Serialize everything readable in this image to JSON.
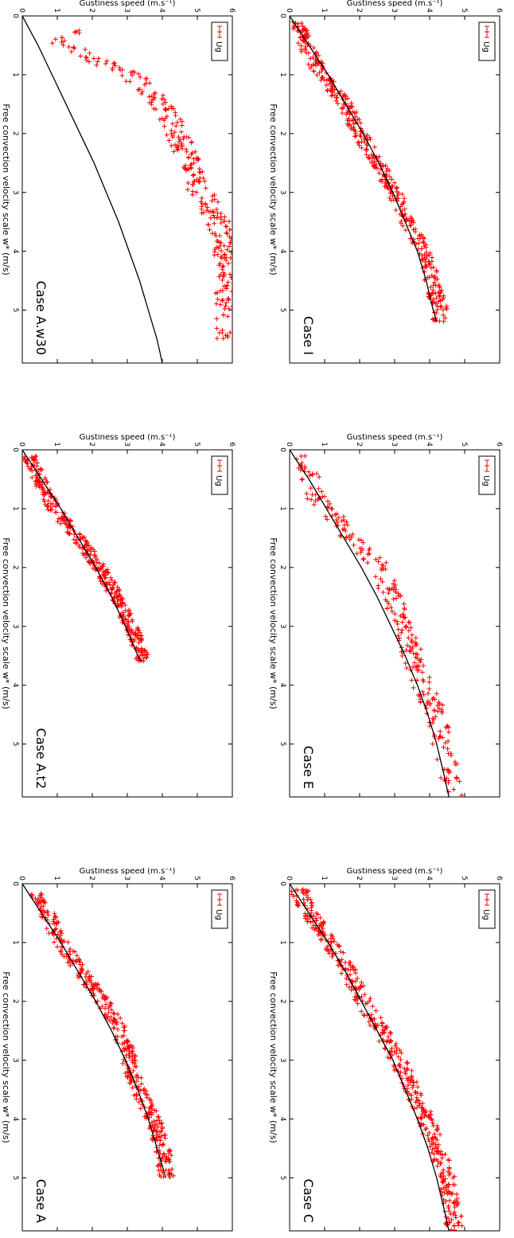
{
  "figure": {
    "style": {
      "marker_color": "#ff0000",
      "curve_color": "#000000",
      "axis_color": "#000000",
      "background": "#ffffff"
    },
    "orientation": "rotated-90-clockwise"
  },
  "chart_data": [
    {
      "type": "scatter",
      "title": "Case A",
      "xlabel": "Free convection velocity scale w* (m/s)",
      "ylabel": "Gustiness speed (m.s⁻¹)",
      "xlim": [
        0,
        5.9
      ],
      "ylim": [
        0,
        6
      ],
      "xticks": [
        "0",
        "1",
        "2",
        "3",
        "4",
        "5"
      ],
      "yticks": [
        "0",
        "1",
        "2",
        "3",
        "4",
        "5",
        "6"
      ],
      "legend": {
        "label": "Ug",
        "position": "top-left"
      },
      "fit_curve": {
        "x": [
          0,
          0.5,
          1,
          1.5,
          2,
          2.5,
          3,
          3.5,
          4,
          4.5,
          5
        ],
        "y": [
          0,
          0.55,
          1.1,
          1.6,
          2.1,
          2.55,
          2.95,
          3.3,
          3.6,
          3.85,
          4.1
        ]
      },
      "series": [
        {
          "name": "Ug",
          "x_range": [
            0.15,
            5.0
          ],
          "count": 420,
          "band": [
            [
              0.2,
              0.45
            ],
            [
              0.5,
              0.7
            ],
            [
              1.0,
              1.1
            ],
            [
              1.5,
              1.7
            ],
            [
              2.0,
              2.3
            ],
            [
              2.5,
              2.8
            ],
            [
              3.0,
              3.05
            ],
            [
              3.5,
              3.3
            ],
            [
              4.0,
              3.75
            ],
            [
              4.5,
              4.0
            ],
            [
              5.0,
              4.15
            ]
          ],
          "scatter": 0.22
        }
      ]
    },
    {
      "type": "scatter",
      "title": "Case A.t2",
      "xlabel": "Free convection velocity scale w* (m/s)",
      "ylabel": "Gustiness speed (m.s⁻¹)",
      "xlim": [
        0,
        5.9
      ],
      "ylim": [
        0,
        6
      ],
      "xticks": [
        "0",
        "1",
        "2",
        "3",
        "4",
        "5"
      ],
      "yticks": [
        "0",
        "1",
        "2",
        "3",
        "4",
        "5",
        "6"
      ],
      "legend": {
        "label": "Ug",
        "position": "top-left"
      },
      "fit_curve": {
        "x": [
          0,
          0.5,
          1,
          1.5,
          2,
          2.5,
          3,
          3.5,
          3.6
        ],
        "y": [
          0,
          0.55,
          1.1,
          1.6,
          2.1,
          2.55,
          2.95,
          3.3,
          3.4
        ]
      },
      "series": [
        {
          "name": "Ug",
          "x_range": [
            0.1,
            3.6
          ],
          "count": 380,
          "band": [
            [
              0.15,
              0.2
            ],
            [
              0.5,
              0.5
            ],
            [
              1.0,
              0.9
            ],
            [
              1.5,
              1.6
            ],
            [
              2.0,
              2.2
            ],
            [
              2.5,
              2.7
            ],
            [
              3.0,
              3.1
            ],
            [
              3.5,
              3.45
            ]
          ],
          "scatter": 0.2
        }
      ]
    },
    {
      "type": "scatter",
      "title": "Case A.w30",
      "xlabel": "Free convection velocity scale w* (m/s)",
      "ylabel": "Gustiness speed (m.s⁻¹)",
      "xlim": [
        0,
        5.9
      ],
      "ylim": [
        0,
        6
      ],
      "xticks": [
        "0",
        "1",
        "2",
        "3",
        "4",
        "5"
      ],
      "yticks": [
        "0",
        "1",
        "2",
        "3",
        "4",
        "5",
        "6"
      ],
      "legend": {
        "label": "Ug",
        "position": "top-left"
      },
      "fit_curve": {
        "x": [
          0,
          0.5,
          1,
          1.5,
          2,
          2.5,
          3,
          3.5,
          4,
          4.5,
          5,
          5.5,
          5.9
        ],
        "y": [
          0,
          0.45,
          0.85,
          1.25,
          1.65,
          2.05,
          2.4,
          2.75,
          3.05,
          3.35,
          3.6,
          3.85,
          4.0
        ]
      },
      "series": [
        {
          "name": "Ug",
          "x_range": [
            0.15,
            5.5
          ],
          "count": 330,
          "band": [
            [
              0.2,
              1.8
            ],
            [
              0.4,
              1.0
            ],
            [
              0.8,
              2.3
            ],
            [
              1.0,
              3.1
            ],
            [
              1.5,
              4.0
            ],
            [
              2.0,
              4.4
            ],
            [
              2.5,
              4.8
            ],
            [
              3.0,
              5.1
            ],
            [
              3.5,
              5.6
            ],
            [
              4.0,
              5.8
            ],
            [
              5.0,
              5.9
            ]
          ],
          "scatter": 0.35
        }
      ]
    },
    {
      "type": "scatter",
      "title": "Case C",
      "xlabel": "Free convection velocity scale w* (m/s)",
      "ylabel": "Gustiness speed (m.s⁻¹)",
      "xlim": [
        0,
        5.9
      ],
      "ylim": [
        0,
        6
      ],
      "xticks": [
        "0",
        "1",
        "2",
        "3",
        "4",
        "5"
      ],
      "yticks": [
        "0",
        "1",
        "2",
        "3",
        "4",
        "5",
        "6"
      ],
      "legend": {
        "label": "Ug",
        "position": "top-left"
      },
      "fit_curve": {
        "x": [
          0,
          0.5,
          1,
          1.5,
          2,
          2.5,
          3,
          3.5,
          4,
          4.5,
          5,
          5.5,
          5.9
        ],
        "y": [
          0,
          0.55,
          1.1,
          1.6,
          2.05,
          2.5,
          2.95,
          3.3,
          3.65,
          3.95,
          4.2,
          4.4,
          4.55
        ]
      },
      "series": [
        {
          "name": "Ug",
          "x_range": [
            0.1,
            5.9
          ],
          "count": 470,
          "band": [
            [
              0.2,
              0.3
            ],
            [
              0.5,
              0.6
            ],
            [
              1.0,
              1.15
            ],
            [
              1.5,
              1.7
            ],
            [
              2.0,
              2.1
            ],
            [
              2.5,
              2.6
            ],
            [
              3.0,
              3.1
            ],
            [
              3.5,
              3.5
            ],
            [
              4.0,
              3.9
            ],
            [
              4.5,
              4.2
            ],
            [
              5.0,
              4.5
            ],
            [
              5.5,
              4.65
            ],
            [
              5.9,
              4.7
            ]
          ],
          "scatter": 0.25
        }
      ]
    },
    {
      "type": "scatter",
      "title": "Case E",
      "xlabel": "Free convection velocity scale w* (m/s)",
      "ylabel": "Gustiness speed (m.s⁻¹)",
      "xlim": [
        0,
        5.9
      ],
      "ylim": [
        0,
        6
      ],
      "xticks": [
        "0",
        "1",
        "2",
        "3",
        "4",
        "5"
      ],
      "yticks": [
        "0",
        "1",
        "2",
        "3",
        "4",
        "5",
        "6"
      ],
      "legend": {
        "label": "Ug",
        "position": "top-left"
      },
      "fit_curve": {
        "x": [
          0,
          0.5,
          1,
          1.5,
          2,
          2.5,
          3,
          3.5,
          4,
          4.5,
          5,
          5.5,
          5.9
        ],
        "y": [
          0,
          0.55,
          1.05,
          1.55,
          2.05,
          2.5,
          2.9,
          3.3,
          3.65,
          3.95,
          4.2,
          4.4,
          4.55
        ]
      },
      "series": [
        {
          "name": "Ug",
          "x_range": [
            0.1,
            5.9
          ],
          "count": 280,
          "band": [
            [
              0.2,
              0.35
            ],
            [
              0.5,
              0.6
            ],
            [
              0.8,
              0.75
            ],
            [
              1.5,
              1.8
            ],
            [
              2.0,
              2.6
            ],
            [
              2.5,
              2.9
            ],
            [
              3.0,
              3.3
            ],
            [
              3.5,
              3.5
            ],
            [
              4.0,
              3.8
            ],
            [
              4.5,
              4.2
            ],
            [
              5.0,
              4.35
            ],
            [
              5.5,
              4.6
            ],
            [
              5.9,
              4.7
            ]
          ],
          "scatter": 0.3
        }
      ]
    },
    {
      "type": "scatter",
      "title": "Case I",
      "xlabel": "Free convection velocity scale w* (m/s)",
      "ylabel": "Gustiness speed (m.s⁻¹)",
      "xlim": [
        0,
        5.9
      ],
      "ylim": [
        0,
        6
      ],
      "xticks": [
        "0",
        "1",
        "2",
        "3",
        "4",
        "5"
      ],
      "yticks": [
        "0",
        "1",
        "2",
        "3",
        "4",
        "5",
        "6"
      ],
      "legend": {
        "label": "Ug",
        "position": "top-left"
      },
      "fit_curve": {
        "x": [
          0,
          0.5,
          1,
          1.5,
          2,
          2.5,
          3,
          3.5,
          4,
          4.5,
          5,
          5.2
        ],
        "y": [
          0,
          0.55,
          1.1,
          1.6,
          2.1,
          2.55,
          2.95,
          3.3,
          3.65,
          3.9,
          4.1,
          4.2
        ]
      },
      "series": [
        {
          "name": "Ug",
          "x_range": [
            0.1,
            5.2
          ],
          "count": 430,
          "band": [
            [
              0.2,
              0.3
            ],
            [
              0.5,
              0.45
            ],
            [
              1.0,
              0.9
            ],
            [
              1.5,
              1.6
            ],
            [
              2.0,
              2.0
            ],
            [
              2.5,
              2.5
            ],
            [
              3.0,
              3.0
            ],
            [
              3.5,
              3.35
            ],
            [
              4.0,
              3.85
            ],
            [
              4.5,
              4.05
            ],
            [
              5.0,
              4.3
            ]
          ],
          "scatter": 0.22
        }
      ]
    }
  ]
}
